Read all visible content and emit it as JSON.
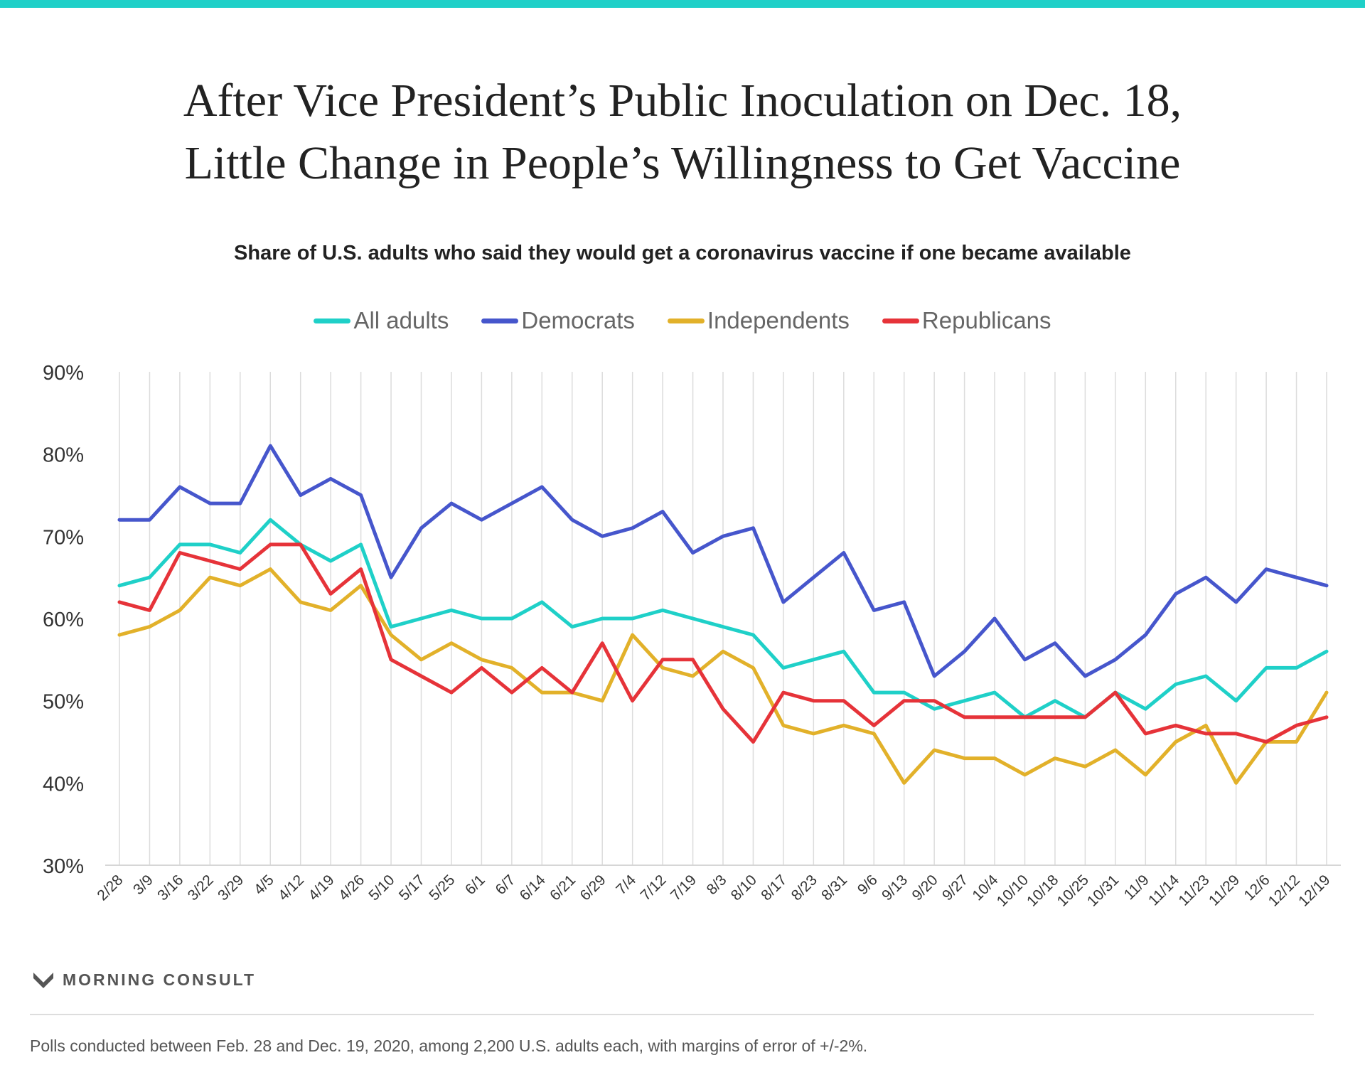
{
  "header": {
    "title_line1": "After Vice President’s Public Inoculation on Dec. 18,",
    "title_line2": "Little Change in People’s Willingness to Get Vaccine",
    "subtitle": "Share of U.S. adults who said they would get a coronavirus vaccine if one became available"
  },
  "branding": {
    "logo_text": "MORNING CONSULT",
    "logo_icon": "morning-consult-m-icon"
  },
  "footnote": "Polls conducted between Feb. 28 and Dec. 19, 2020, among 2,200 U.S. adults each, with margins of error of +/-2%.",
  "colors": {
    "accent": "#1fd0c8"
  },
  "chart_data": {
    "type": "line",
    "title": "Share of U.S. adults who said they would get a coronavirus vaccine if one became available",
    "xlabel": "",
    "ylabel": "",
    "ylim": [
      30,
      90
    ],
    "yticks": [
      30,
      40,
      50,
      60,
      70,
      80,
      90
    ],
    "ytick_labels": [
      "30%",
      "40%",
      "50%",
      "60%",
      "70%",
      "80%",
      "90%"
    ],
    "grid": "vertical",
    "legend_position": "top-center",
    "x": [
      "2/28",
      "3/9",
      "3/16",
      "3/22",
      "3/29",
      "4/5",
      "4/12",
      "4/19",
      "4/26",
      "5/10",
      "5/17",
      "5/25",
      "6/1",
      "6/7",
      "6/14",
      "6/21",
      "6/29",
      "7/4",
      "7/12",
      "7/19",
      "8/3",
      "8/10",
      "8/17",
      "8/23",
      "8/31",
      "9/6",
      "9/13",
      "9/20",
      "9/27",
      "10/4",
      "10/10",
      "10/18",
      "10/25",
      "10/31",
      "11/9",
      "11/14",
      "11/23",
      "11/29",
      "12/6",
      "12/12",
      "12/19"
    ],
    "series": [
      {
        "name": "All adults",
        "color": "#1fd0c8",
        "values": [
          64,
          65,
          69,
          69,
          68,
          72,
          69,
          67,
          69,
          59,
          60,
          61,
          60,
          60,
          62,
          59,
          60,
          60,
          61,
          60,
          59,
          58,
          54,
          55,
          56,
          51,
          51,
          49,
          50,
          51,
          48,
          50,
          48,
          51,
          49,
          52,
          53,
          50,
          54,
          54,
          56
        ]
      },
      {
        "name": "Democrats",
        "color": "#4656cc",
        "values": [
          72,
          72,
          76,
          74,
          74,
          81,
          75,
          77,
          75,
          65,
          71,
          74,
          72,
          74,
          76,
          72,
          70,
          71,
          73,
          68,
          70,
          71,
          62,
          65,
          68,
          61,
          62,
          53,
          56,
          60,
          55,
          57,
          53,
          55,
          58,
          63,
          65,
          62,
          66,
          65,
          64
        ]
      },
      {
        "name": "Independents",
        "color": "#e2b12a",
        "values": [
          58,
          59,
          61,
          65,
          64,
          66,
          62,
          61,
          64,
          58,
          55,
          57,
          55,
          54,
          51,
          51,
          50,
          58,
          54,
          53,
          56,
          54,
          47,
          46,
          47,
          46,
          40,
          44,
          43,
          43,
          41,
          43,
          42,
          44,
          41,
          45,
          47,
          40,
          45,
          45,
          51
        ]
      },
      {
        "name": "Republicans",
        "color": "#e63339",
        "values": [
          62,
          61,
          68,
          67,
          66,
          69,
          69,
          63,
          66,
          55,
          53,
          51,
          54,
          51,
          54,
          51,
          57,
          50,
          55,
          55,
          49,
          45,
          51,
          50,
          50,
          47,
          50,
          50,
          48,
          48,
          48,
          48,
          48,
          51,
          46,
          47,
          46,
          46,
          45,
          47,
          48
        ]
      }
    ]
  }
}
